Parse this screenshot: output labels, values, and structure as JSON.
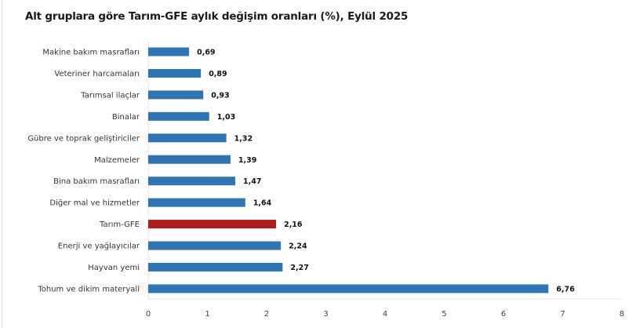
{
  "chart_data": {
    "type": "bar",
    "orientation": "horizontal",
    "title": "Alt gruplara göre Tarım-GFE aylık değişim oranları (%), Eylül 2025",
    "categories": [
      "Makine bakım masrafları",
      "Veteriner harcamaları",
      "Tarımsal ilaçlar",
      "Binalar",
      "Gübre ve toprak geliştiriciler",
      "Malzemeler",
      "Bina bakım masrafları",
      "Diğer mal ve hizmetler",
      "Tarım-GFE",
      "Enerji  ve yağlayıcılar",
      "Hayvan yemi",
      "Tohum ve dikim materyali"
    ],
    "values": [
      0.69,
      0.89,
      0.93,
      1.03,
      1.32,
      1.39,
      1.47,
      1.64,
      2.16,
      2.24,
      2.27,
      6.76
    ],
    "value_labels": [
      "0,69",
      "0,89",
      "0,93",
      "1,03",
      "1,32",
      "1,39",
      "1,47",
      "1,64",
      "2,16",
      "2,24",
      "2,27",
      "6,76"
    ],
    "xlim": [
      0,
      8
    ],
    "xticks": [
      "0",
      "1",
      "2",
      "3",
      "4",
      "5",
      "6",
      "7",
      "8"
    ],
    "xlabel": "",
    "ylabel": "",
    "grid": false,
    "colors": {
      "default": "#2e75b6",
      "highlight": "#b0191e",
      "highlight_category": "Tarım-GFE"
    }
  }
}
